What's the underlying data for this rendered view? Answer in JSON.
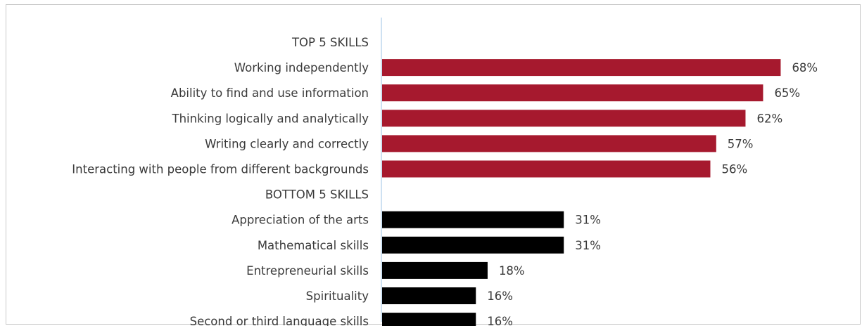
{
  "chart_data": {
    "type": "bar",
    "orientation": "horizontal",
    "value_suffix": "%",
    "xlim": [
      0,
      70
    ],
    "grid": false,
    "axis_color": "#bdd7ee",
    "rows": [
      {
        "label": "TOP 5 SKILLS",
        "kind": "header"
      },
      {
        "label": "Working independently",
        "value": 68,
        "group": "top"
      },
      {
        "label": "Ability to find and use information",
        "value": 65,
        "group": "top"
      },
      {
        "label": "Thinking logically and analytically",
        "value": 62,
        "group": "top"
      },
      {
        "label": "Writing clearly and correctly",
        "value": 57,
        "group": "top"
      },
      {
        "label": "Interacting with people from different backgrounds",
        "value": 56,
        "group": "top"
      },
      {
        "label": "BOTTOM 5 SKILLS",
        "kind": "header"
      },
      {
        "label": "Appreciation of the arts",
        "value": 31,
        "group": "bottom"
      },
      {
        "label": "Mathematical skills",
        "value": 31,
        "group": "bottom"
      },
      {
        "label": "Entrepreneurial skills",
        "value": 18,
        "group": "bottom"
      },
      {
        "label": "Spirituality",
        "value": 16,
        "group": "bottom"
      },
      {
        "label": "Second or third language skills",
        "value": 16,
        "group": "bottom"
      }
    ],
    "colors": {
      "top": "#a6192e",
      "bottom": "#000000"
    }
  }
}
